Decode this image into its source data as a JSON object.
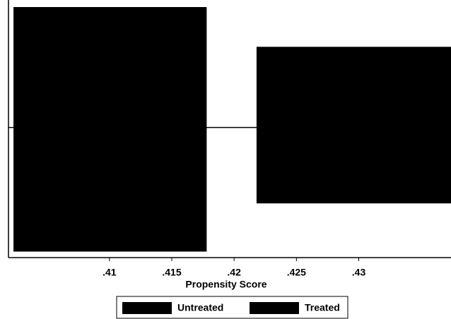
{
  "chart_data": {
    "type": "histogram",
    "x_label": "Propensity Score",
    "bins": [
      0.4023,
      0.4178,
      0.4218,
      0.4374
    ],
    "series": [
      {
        "name": "Untreated",
        "color": "#000000",
        "values": [
          1.0,
          0,
          0.67
        ]
      },
      {
        "name": "Treated",
        "color": "#000000",
        "values": [
          -1.03,
          0,
          -0.63
        ]
      }
    ],
    "xlim": [
      0.4019,
      0.4374
    ],
    "xticks": [
      {
        "value": 0.41,
        "label": ".41"
      },
      {
        "value": 0.415,
        "label": ".415"
      },
      {
        "value": 0.42,
        "label": ".42"
      },
      {
        "value": 0.425,
        "label": ".425"
      },
      {
        "value": 0.43,
        "label": ".43"
      }
    ],
    "ylim": [
      -1.08,
      1
    ],
    "zero_line": true,
    "legend": "bottom"
  }
}
